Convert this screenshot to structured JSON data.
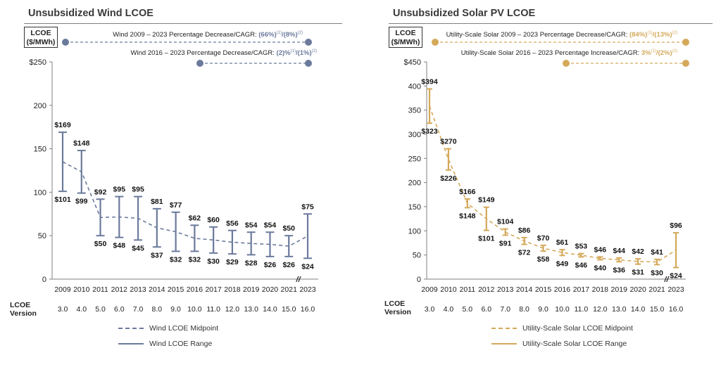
{
  "wind": {
    "title": "Unsubsidized Wind LCOE",
    "lcoe_box": [
      "LCOE",
      "($/MWh)"
    ],
    "color": "#6b7a9c",
    "cagr1": {
      "label": "Wind 2009 – 2023 Percentage Decrease/CAGR: ",
      "v1": "(66%)",
      "s1": "(1)",
      "v2": "/(8%)",
      "s2": "(2)"
    },
    "cagr2": {
      "label": "Wind 2016 – 2023 Percentage Decrease/CAGR: ",
      "v1": "(2)%",
      "s1": "(1)",
      "v2": "/(1%)",
      "s2": "(2)"
    },
    "legend": {
      "midpoint": "Wind LCOE Midpoint",
      "range": "Wind LCOE Range"
    }
  },
  "solar": {
    "title": "Unsubsidized Solar PV LCOE",
    "lcoe_box": [
      "LCOE",
      "($/MWh)"
    ],
    "color": "#d4a95a",
    "cagr1": {
      "label": "Utility-Scale Solar 2009 – 2023 Percentage Decrease/CAGR: ",
      "v1": "(84%)",
      "s1": "(1)",
      "v2": "/(13%)",
      "s2": "(2)"
    },
    "cagr2": {
      "label": "Utility-Scale Solar 2016 – 2023 Percentage Increase/CAGR: ",
      "v1": "3%",
      "s1": "(1)",
      "v2": "/(2%)",
      "s2": "(2)"
    },
    "legend": {
      "midpoint": "Utility-Scale Solar LCOE Midpoint",
      "range": "Utility-Scale Solar LCOE Range"
    }
  },
  "side_label": {
    "line1": "LCOE",
    "line2": "Version"
  },
  "axis_break": "//",
  "chart_data": [
    {
      "type": "range",
      "title": "Unsubsidized Wind LCOE",
      "ylabel": "LCOE ($/MWh)",
      "categories": [
        "2009",
        "2010",
        "2011",
        "2012",
        "2013",
        "2014",
        "2015",
        "2016",
        "2017",
        "2018",
        "2019",
        "2020",
        "2021",
        "2023"
      ],
      "versions": [
        "3.0",
        "4.0",
        "5.0",
        "6.0",
        "7.0",
        "8.0",
        "9.0",
        "10.0",
        "11.0",
        "12.0",
        "13.0",
        "14.0",
        "15.0",
        "16.0"
      ],
      "high": [
        169,
        148,
        92,
        95,
        95,
        81,
        77,
        62,
        60,
        56,
        54,
        54,
        50,
        75
      ],
      "low": [
        101,
        99,
        50,
        48,
        45,
        37,
        32,
        32,
        30,
        29,
        28,
        26,
        26,
        24
      ],
      "high_labels": [
        "$169",
        "$148",
        "$92",
        "$95",
        "$95",
        "$81",
        "$77",
        "$62",
        "$60",
        "$56",
        "$54",
        "$54",
        "$50",
        "$75"
      ],
      "low_labels": [
        "$101",
        "$99",
        "$50",
        "$48",
        "$45",
        "$37",
        "$32",
        "$32",
        "$30",
        "$29",
        "$28",
        "$26",
        "$26",
        "$24"
      ],
      "yticks": [
        "$250",
        "200",
        "150",
        "100",
        "50",
        "0"
      ],
      "ytick_values": [
        250,
        200,
        150,
        100,
        50,
        0
      ],
      "ylim": [
        0,
        250
      ]
    },
    {
      "type": "range",
      "title": "Unsubsidized Solar PV LCOE",
      "ylabel": "LCOE ($/MWh)",
      "categories": [
        "2009",
        "2010",
        "2011",
        "2012",
        "2013",
        "2014",
        "2015",
        "2016",
        "2017",
        "2018",
        "2019",
        "2020",
        "2021",
        "2023"
      ],
      "versions": [
        "3.0",
        "4.0",
        "5.0",
        "6.0",
        "7.0",
        "8.0",
        "9.0",
        "10.0",
        "11.0",
        "12.0",
        "13.0",
        "14.0",
        "15.0",
        "16.0"
      ],
      "high": [
        394,
        270,
        166,
        149,
        104,
        86,
        70,
        61,
        53,
        46,
        44,
        42,
        41,
        96
      ],
      "low": [
        323,
        226,
        148,
        101,
        91,
        72,
        58,
        49,
        46,
        40,
        36,
        31,
        30,
        24
      ],
      "high_labels": [
        "$394",
        "$270",
        "$166",
        "$149",
        "$104",
        "$86",
        "$70",
        "$61",
        "$53",
        "$46",
        "$44",
        "$42",
        "$41",
        "$96"
      ],
      "low_labels": [
        "$323",
        "$226",
        "$148",
        "$101",
        "$91",
        "$72",
        "$58",
        "$49",
        "$46",
        "$40",
        "$36",
        "$31",
        "$30",
        "$24"
      ],
      "yticks": [
        "$450",
        "400",
        "350",
        "300",
        "250",
        "200",
        "150",
        "100",
        "50",
        "0"
      ],
      "ytick_values": [
        450,
        400,
        350,
        300,
        250,
        200,
        150,
        100,
        50,
        0
      ],
      "ylim": [
        0,
        450
      ]
    }
  ]
}
